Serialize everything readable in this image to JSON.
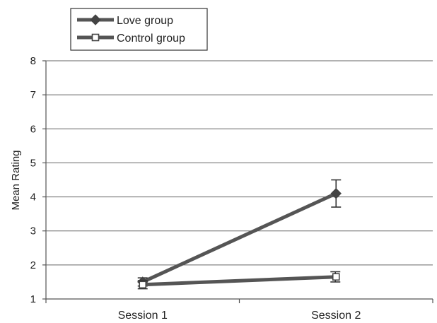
{
  "colors": {
    "series_line": "#555555",
    "grid": "#666666",
    "axis": "#555555",
    "text": "#222222",
    "background": "#ffffff"
  },
  "chart_data": {
    "type": "line",
    "title": "",
    "xlabel": "",
    "ylabel": "Mean Rating",
    "categories": [
      "Session 1",
      "Session 2"
    ],
    "ylim": [
      1,
      8
    ],
    "yticks": [
      1,
      2,
      3,
      4,
      5,
      6,
      7,
      8
    ],
    "grid": true,
    "legend_position": "top-left",
    "series": [
      {
        "name": "Love group",
        "marker": "diamond-filled",
        "values": [
          1.5,
          4.1
        ],
        "error": [
          0.12,
          0.4
        ]
      },
      {
        "name": "Control group",
        "marker": "square-open",
        "values": [
          1.42,
          1.65
        ],
        "error": [
          0.12,
          0.15
        ]
      }
    ]
  }
}
